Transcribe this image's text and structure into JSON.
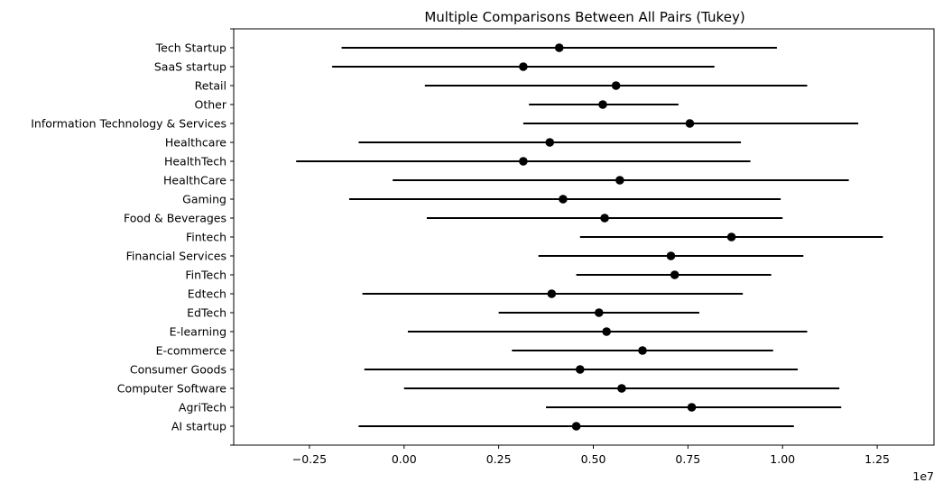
{
  "chart_data": {
    "type": "scatter",
    "title": "Multiple Comparisons Between All Pairs (Tukey)",
    "xlabel": "",
    "ylabel": "",
    "x_offset_text": "1e7",
    "xlim": [
      -4500000,
      14000000
    ],
    "x_ticks": [
      -2500000,
      0,
      2500000,
      5000000,
      7500000,
      10000000,
      12500000
    ],
    "x_tick_labels": [
      "−0.25",
      "0.00",
      "0.25",
      "0.50",
      "0.75",
      "1.00",
      "1.25"
    ],
    "grid": false,
    "categories": [
      "Tech Startup",
      "SaaS startup",
      "Retail",
      "Other",
      "Information Technology & Services",
      "Healthcare",
      "HealthTech",
      "HealthCare",
      "Gaming",
      "Food & Beverages",
      "Fintech",
      "Financial Services",
      "FinTech",
      "Edtech",
      "EdTech",
      "E-learning",
      "E-commerce",
      "Consumer Goods",
      "Computer Software",
      "AgriTech",
      "AI startup"
    ],
    "means": [
      4100000,
      3150000,
      5600000,
      5250000,
      7550000,
      3850000,
      3150000,
      5700000,
      4200000,
      5300000,
      8650000,
      7050000,
      7150000,
      3900000,
      5150000,
      5350000,
      6300000,
      4650000,
      5750000,
      7600000,
      4550000
    ],
    "lower": [
      -1650000,
      -1900000,
      550000,
      3300000,
      3150000,
      -1200000,
      -2850000,
      -300000,
      -1450000,
      600000,
      4650000,
      3550000,
      4550000,
      -1100000,
      2500000,
      100000,
      2850000,
      -1050000,
      0,
      3750000,
      -1200000
    ],
    "upper": [
      9850000,
      8200000,
      10650000,
      7250000,
      12000000,
      8900000,
      9150000,
      11750000,
      9950000,
      10000000,
      12650000,
      10550000,
      9700000,
      8950000,
      7800000,
      10650000,
      9750000,
      10400000,
      11500000,
      11550000,
      10300000
    ],
    "marker_color": "#000000",
    "line_color": "#000000"
  }
}
